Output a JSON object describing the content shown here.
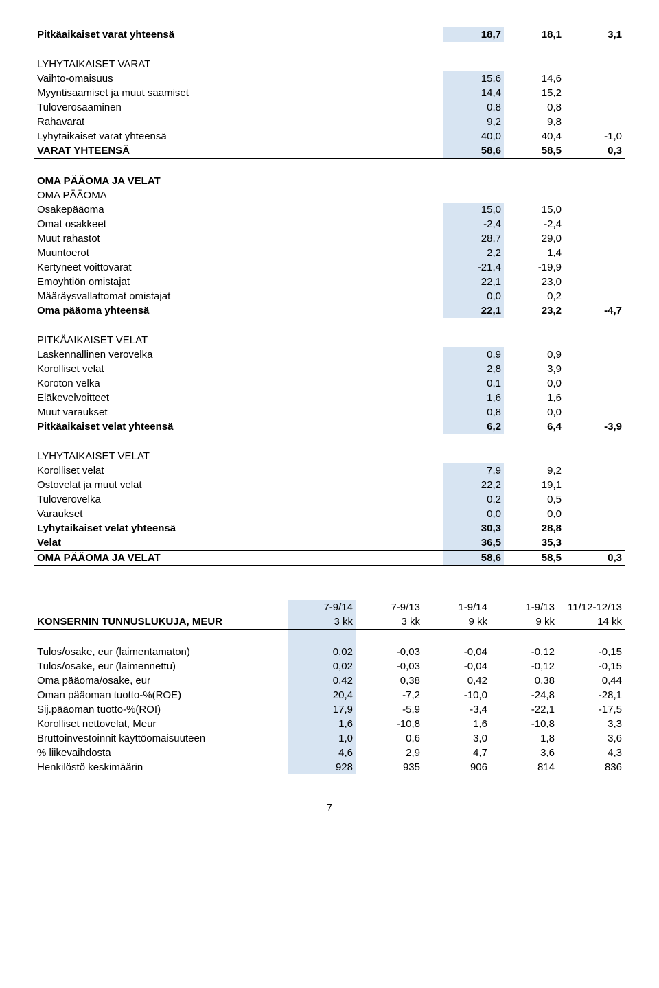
{
  "table1": {
    "rows": [
      {
        "label": "Pitkäaikaiset varat yhteensä",
        "v": [
          "18,7",
          "18,1",
          "3,1"
        ],
        "bold": true,
        "hl": true
      },
      {
        "gap": true
      },
      {
        "label": "LYHYTAIKAISET VARAT",
        "v": [
          "",
          "",
          ""
        ]
      },
      {
        "label": "Vaihto-omaisuus",
        "v": [
          "15,6",
          "14,6",
          ""
        ],
        "hl": true
      },
      {
        "label": "Myyntisaamiset ja muut saamiset",
        "v": [
          "14,4",
          "15,2",
          ""
        ],
        "hl": true
      },
      {
        "label": "Tuloverosaaminen",
        "v": [
          "0,8",
          "0,8",
          ""
        ],
        "hl": true
      },
      {
        "label": "Rahavarat",
        "v": [
          "9,2",
          "9,8",
          ""
        ],
        "hl": true
      },
      {
        "label": "Lyhytaikaiset varat yhteensä",
        "v": [
          "40,0",
          "40,4",
          "-1,0"
        ],
        "hl": true
      },
      {
        "label": "VARAT YHTEENSÄ",
        "v": [
          "58,6",
          "58,5",
          "0,3"
        ],
        "bold": true,
        "hl": true,
        "uline": true
      },
      {
        "gap": true
      },
      {
        "label": "OMA PÄÄOMA JA VELAT",
        "v": [
          "",
          "",
          ""
        ],
        "bold": true
      },
      {
        "label": "OMA PÄÄOMA",
        "v": [
          "",
          "",
          ""
        ]
      },
      {
        "label": "Osakepääoma",
        "v": [
          "15,0",
          "15,0",
          ""
        ],
        "hl": true
      },
      {
        "label": "Omat osakkeet",
        "v": [
          "-2,4",
          "-2,4",
          ""
        ],
        "hl": true
      },
      {
        "label": "Muut rahastot",
        "v": [
          "28,7",
          "29,0",
          ""
        ],
        "hl": true
      },
      {
        "label": "Muuntoerot",
        "v": [
          "2,2",
          "1,4",
          ""
        ],
        "hl": true
      },
      {
        "label": "Kertyneet voittovarat",
        "v": [
          "-21,4",
          "-19,9",
          ""
        ],
        "hl": true
      },
      {
        "label": "Emoyhtiön omistajat",
        "v": [
          "22,1",
          "23,0",
          ""
        ],
        "hl": true
      },
      {
        "label": "Määräysvallattomat omistajat",
        "v": [
          "0,0",
          "0,2",
          ""
        ],
        "hl": true
      },
      {
        "label": "Oma pääoma yhteensä",
        "v": [
          "22,1",
          "23,2",
          "-4,7"
        ],
        "bold": true,
        "hl": true
      },
      {
        "gap": true
      },
      {
        "label": "PITKÄAIKAISET VELAT",
        "v": [
          "",
          "",
          ""
        ]
      },
      {
        "label": "Laskennallinen verovelka",
        "v": [
          "0,9",
          "0,9",
          ""
        ],
        "hl": true
      },
      {
        "label": "Korolliset velat",
        "v": [
          "2,8",
          "3,9",
          ""
        ],
        "hl": true
      },
      {
        "label": "Koroton velka",
        "v": [
          "0,1",
          "0,0",
          ""
        ],
        "hl": true
      },
      {
        "label": "Eläkevelvoitteet",
        "v": [
          "1,6",
          "1,6",
          ""
        ],
        "hl": true
      },
      {
        "label": "Muut varaukset",
        "v": [
          "0,8",
          "0,0",
          ""
        ],
        "hl": true
      },
      {
        "label": "Pitkäaikaiset velat yhteensä",
        "v": [
          "6,2",
          "6,4",
          "-3,9"
        ],
        "bold": true,
        "hl": true
      },
      {
        "gap": true
      },
      {
        "label": "LYHYTAIKAISET VELAT",
        "v": [
          "",
          "",
          ""
        ]
      },
      {
        "label": "Korolliset velat",
        "v": [
          "7,9",
          "9,2",
          ""
        ],
        "hl": true
      },
      {
        "label": "Ostovelat ja muut velat",
        "v": [
          "22,2",
          "19,1",
          ""
        ],
        "hl": true
      },
      {
        "label": "Tuloverovelka",
        "v": [
          "0,2",
          "0,5",
          ""
        ],
        "hl": true
      },
      {
        "label": "Varaukset",
        "v": [
          "0,0",
          "0,0",
          ""
        ],
        "hl": true
      },
      {
        "label": "Lyhytaikaiset velat yhteensä",
        "v": [
          "30,3",
          "28,8",
          ""
        ],
        "bold": true,
        "hl": true
      },
      {
        "label": "Velat",
        "v": [
          "36,5",
          "35,3",
          ""
        ],
        "bold": true,
        "hl": true,
        "uline": true
      },
      {
        "label": "OMA PÄÄOMA JA VELAT",
        "v": [
          "58,6",
          "58,5",
          "0,3"
        ],
        "bold": true,
        "hl": true,
        "uline": true
      }
    ]
  },
  "table2": {
    "header1": [
      "",
      "7-9/14",
      "7-9/13",
      "1-9/14",
      "1-9/13",
      "11/12-12/13"
    ],
    "header2": [
      "KONSERNIN  TUNNUSLUKUJA, MEUR",
      "3 kk",
      "3 kk",
      "9 kk",
      "9 kk",
      "14 kk"
    ],
    "rows": [
      {
        "label": "Tulos/osake, eur (laimentamaton)",
        "v": [
          "0,02",
          "-0,03",
          "-0,04",
          "-0,12",
          "-0,15"
        ]
      },
      {
        "label": "Tulos/osake, eur (laimennettu)",
        "v": [
          "0,02",
          "-0,03",
          "-0,04",
          "-0,12",
          "-0,15"
        ]
      },
      {
        "label": "Oma pääoma/osake, eur",
        "v": [
          "0,42",
          "0,38",
          "0,42",
          "0,38",
          "0,44"
        ]
      },
      {
        "label": "Oman pääoman tuotto-%(ROE)",
        "v": [
          "20,4",
          "-7,2",
          "-10,0",
          "-24,8",
          "-28,1"
        ]
      },
      {
        "label": "Sij.pääoman tuotto-%(ROI)",
        "v": [
          "17,9",
          "-5,9",
          "-3,4",
          "-22,1",
          "-17,5"
        ]
      },
      {
        "label": "Korolliset nettovelat, Meur",
        "v": [
          "1,6",
          "-10,8",
          "1,6",
          "-10,8",
          "3,3"
        ]
      },
      {
        "label": "Bruttoinvestoinnit käyttöomaisuuteen",
        "v": [
          "1,0",
          "0,6",
          "3,0",
          "1,8",
          "3,6"
        ]
      },
      {
        "label": "% liikevaihdosta",
        "v": [
          "4,6",
          "2,9",
          "4,7",
          "3,6",
          "4,3"
        ]
      },
      {
        "label": "Henkilöstö keskimäärin",
        "v": [
          "928",
          "935",
          "906",
          "814",
          "836"
        ]
      }
    ]
  },
  "pageNumber": "7"
}
